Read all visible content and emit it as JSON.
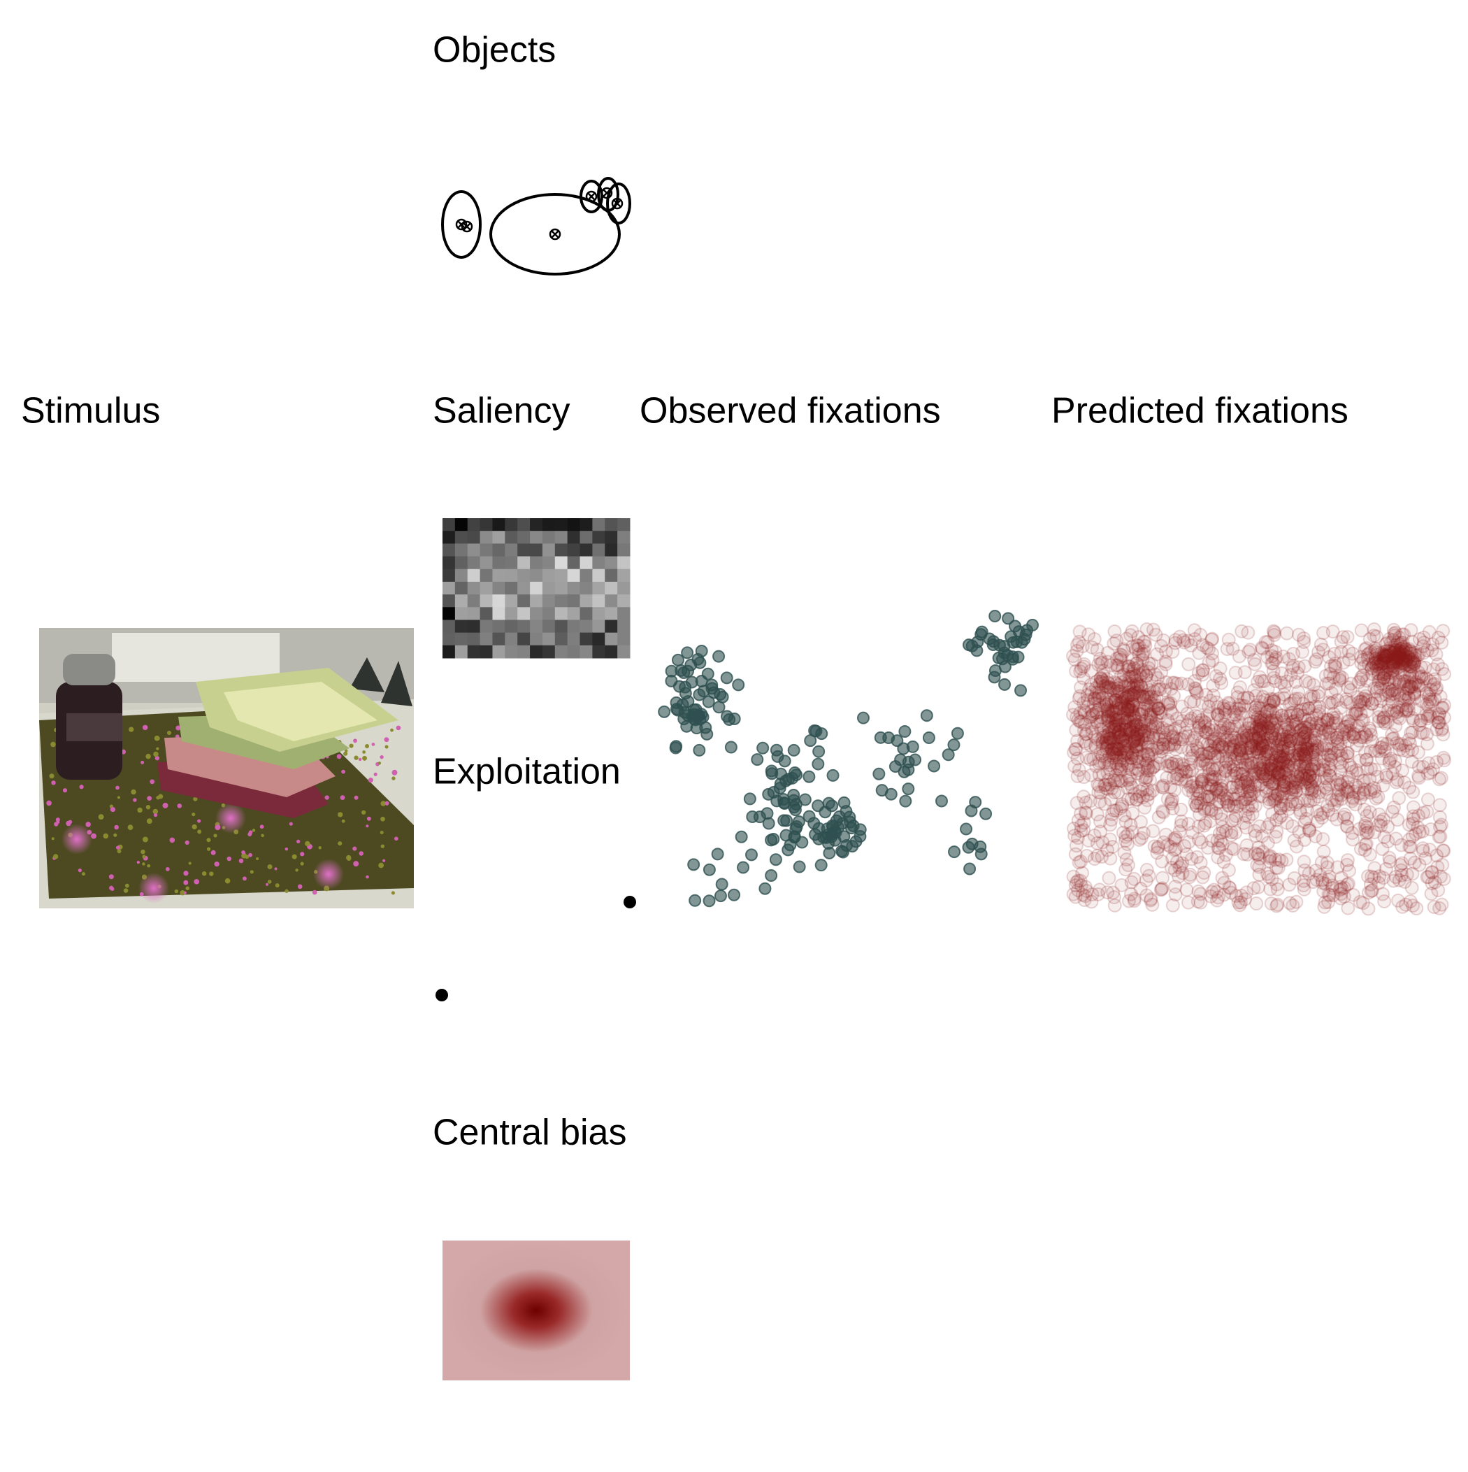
{
  "panels": {
    "objects": {
      "title": "Objects"
    },
    "stimulus": {
      "title": "Stimulus"
    },
    "saliency": {
      "title": "Saliency"
    },
    "observed": {
      "title": "Observed fixations"
    },
    "predicted": {
      "title": "Predicted fixations"
    },
    "exploitation": {
      "title": "Exploitation"
    },
    "central_bias": {
      "title": "Central bias"
    }
  }
}
